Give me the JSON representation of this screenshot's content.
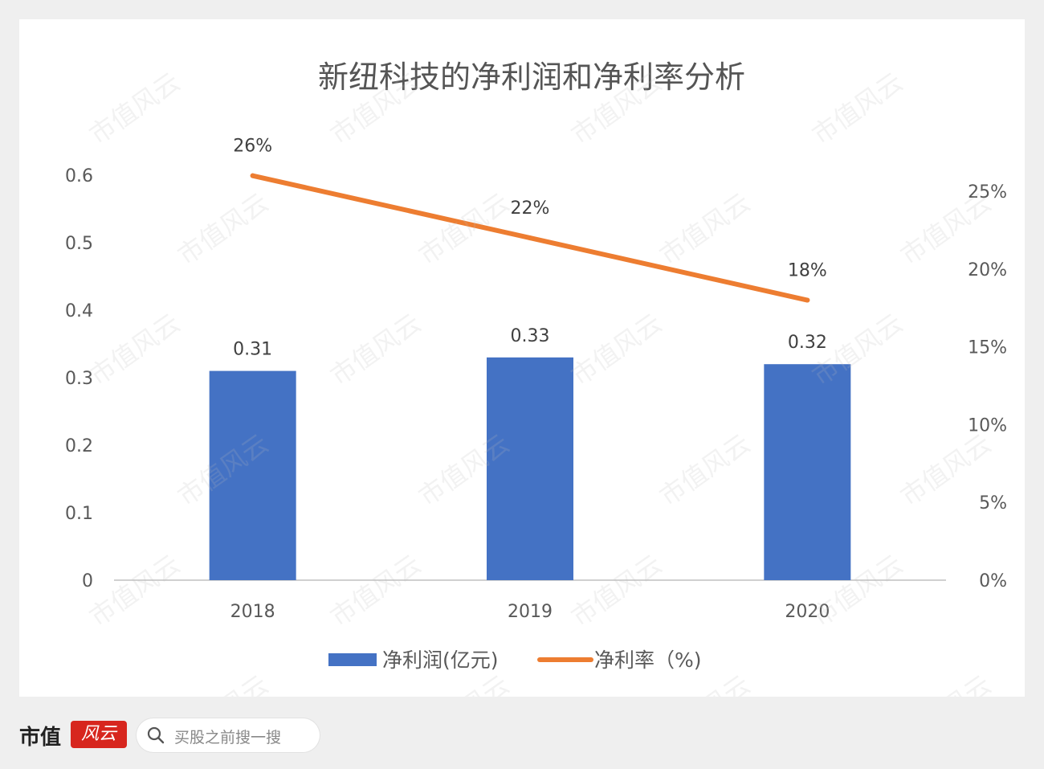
{
  "chart_data": {
    "type": "bar+line",
    "title": "新纽科技的净利润和净利率分析",
    "categories": [
      "2018",
      "2019",
      "2020"
    ],
    "series": [
      {
        "name": "净利润(亿元)",
        "type": "bar",
        "axis": "left",
        "color": "#4472c4",
        "values": [
          0.31,
          0.33,
          0.32
        ],
        "labels": [
          "0.31",
          "0.33",
          "0.32"
        ]
      },
      {
        "name": "净利率（%)",
        "type": "line",
        "axis": "right",
        "color": "#ed7d31",
        "values": [
          26,
          22,
          18
        ],
        "labels": [
          "26%",
          "22%",
          "18%"
        ]
      }
    ],
    "y_left": {
      "ylim": [
        0,
        0.6
      ],
      "ticks": [
        0,
        0.1,
        0.2,
        0.3,
        0.4,
        0.5,
        0.6
      ],
      "tick_labels": [
        "0",
        "0.1",
        "0.2",
        "0.3",
        "0.4",
        "0.5",
        "0.6"
      ]
    },
    "y_right": {
      "ylim": [
        0,
        25
      ],
      "ticks": [
        0,
        5,
        10,
        15,
        20,
        25
      ],
      "tick_labels": [
        "0%",
        "5%",
        "10%",
        "15%",
        "20%",
        "25%"
      ]
    },
    "legend_position": "bottom",
    "grid": false
  },
  "footer": {
    "brand": "市值",
    "brand_mark": "风云",
    "search_placeholder": "买股之前搜一搜"
  },
  "watermark": "市值风云"
}
